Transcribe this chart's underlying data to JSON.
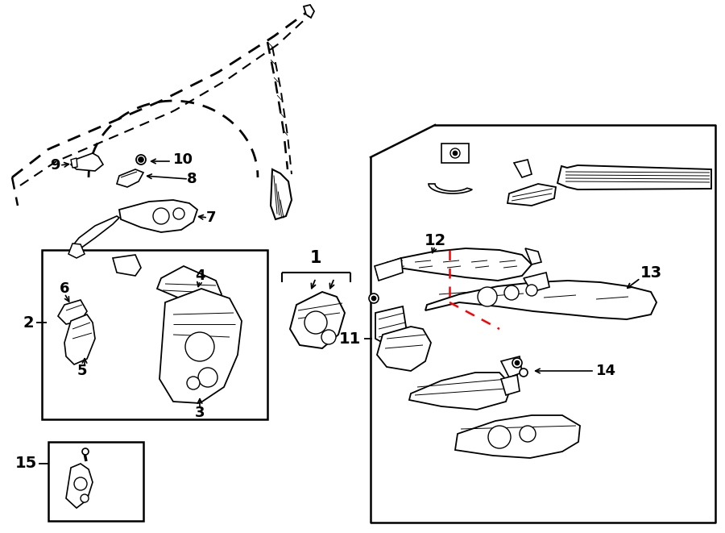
{
  "bg_color": "#ffffff",
  "lc": "#000000",
  "rc": "#ff0000",
  "fig_w": 9.0,
  "fig_h": 6.61,
  "dpi": 100
}
